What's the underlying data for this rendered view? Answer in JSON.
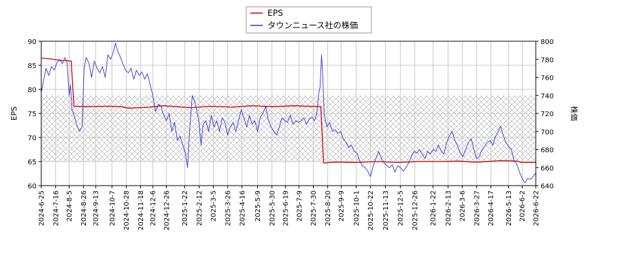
{
  "chart_data": {
    "type": "line",
    "xlabel": "",
    "ylabel_left": "EPS",
    "ylabel_right": "株価",
    "ylim_left": [
      60,
      90
    ],
    "ylim_right": [
      640,
      800
    ],
    "yticks_left": [
      60,
      65,
      70,
      75,
      80,
      85,
      90
    ],
    "yticks_right": [
      640,
      660,
      680,
      700,
      720,
      740,
      760,
      780,
      800
    ],
    "x_range": [
      "2024-06-25",
      "2026-06-22"
    ],
    "x_ticks": [
      "2024-6-25",
      "2024-7-16",
      "2024-8-5",
      "2024-8-26",
      "2024-9-13",
      "2024-10-7",
      "2024-10-28",
      "2024-11-18",
      "2024-12-6",
      "2024-12-26",
      "2025-1-22",
      "2025-2-12",
      "2025-3-5",
      "2025-3-26",
      "2025-4-16",
      "2025-5-9",
      "2025-5-30",
      "2025-6-19",
      "2025-7-9",
      "2025-7-30",
      "2025-8-20",
      "2025-9-9",
      "2025-10-1",
      "2025-10-22",
      "2025-11-13",
      "2025-12-5",
      "2025-12-26",
      "2026-1-22",
      "2026-2-13",
      "2026-3-6",
      "2026-3-27",
      "2026-4-17",
      "2026-5-13",
      "2026-6-2",
      "2026-6-22"
    ],
    "grid": true,
    "legend_position": "top-center",
    "hatched_band_right_axis": [
      666,
      740
    ],
    "series": [
      {
        "name": "EPS",
        "axis": "left",
        "color": "#cc0000",
        "points": [
          [
            "2024-06-25",
            86.5
          ],
          [
            "2024-07-10",
            86.3
          ],
          [
            "2024-07-25",
            86.0
          ],
          [
            "2024-08-08",
            85.9
          ],
          [
            "2024-08-12",
            76.5
          ],
          [
            "2024-09-01",
            76.4
          ],
          [
            "2024-10-01",
            76.5
          ],
          [
            "2024-10-20",
            76.4
          ],
          [
            "2024-11-01",
            76.1
          ],
          [
            "2024-12-01",
            76.3
          ],
          [
            "2024-12-20",
            76.6
          ],
          [
            "2025-01-10",
            76.4
          ],
          [
            "2025-02-01",
            76.2
          ],
          [
            "2025-03-01",
            76.5
          ],
          [
            "2025-04-01",
            76.3
          ],
          [
            "2025-05-01",
            76.6
          ],
          [
            "2025-06-01",
            76.4
          ],
          [
            "2025-07-01",
            76.6
          ],
          [
            "2025-08-10",
            76.4
          ],
          [
            "2025-08-14",
            64.7
          ],
          [
            "2025-09-01",
            64.9
          ],
          [
            "2025-10-01",
            64.8
          ],
          [
            "2025-11-01",
            65.0
          ],
          [
            "2025-12-01",
            64.8
          ],
          [
            "2026-01-01",
            65.0
          ],
          [
            "2026-02-01",
            65.0
          ],
          [
            "2026-03-01",
            65.1
          ],
          [
            "2026-03-20",
            64.9
          ],
          [
            "2026-04-01",
            64.9
          ],
          [
            "2026-05-01",
            65.2
          ],
          [
            "2026-05-25",
            65.1
          ],
          [
            "2026-06-01",
            64.8
          ],
          [
            "2026-06-22",
            64.8
          ]
        ]
      },
      {
        "name": "タウンニュース社の株価",
        "axis": "right",
        "color": "#3333cc",
        "points": [
          [
            "2024-06-25",
            743
          ],
          [
            "2024-06-28",
            755
          ],
          [
            "2024-07-02",
            770
          ],
          [
            "2024-07-06",
            762
          ],
          [
            "2024-07-10",
            772
          ],
          [
            "2024-07-14",
            768
          ],
          [
            "2024-07-18",
            776
          ],
          [
            "2024-07-22",
            780
          ],
          [
            "2024-07-26",
            775
          ],
          [
            "2024-07-30",
            782
          ],
          [
            "2024-08-02",
            776
          ],
          [
            "2024-08-05",
            740
          ],
          [
            "2024-08-07",
            752
          ],
          [
            "2024-08-09",
            725
          ],
          [
            "2024-08-12",
            718
          ],
          [
            "2024-08-16",
            708
          ],
          [
            "2024-08-20",
            700
          ],
          [
            "2024-08-24",
            705
          ],
          [
            "2024-08-27",
            770
          ],
          [
            "2024-08-30",
            782
          ],
          [
            "2024-09-03",
            776
          ],
          [
            "2024-09-07",
            760
          ],
          [
            "2024-09-11",
            778
          ],
          [
            "2024-09-15",
            770
          ],
          [
            "2024-09-19",
            765
          ],
          [
            "2024-09-23",
            772
          ],
          [
            "2024-09-27",
            760
          ],
          [
            "2024-10-01",
            785
          ],
          [
            "2024-10-05",
            780
          ],
          [
            "2024-10-09",
            788
          ],
          [
            "2024-10-12",
            798
          ],
          [
            "2024-10-15",
            790
          ],
          [
            "2024-10-19",
            783
          ],
          [
            "2024-10-23",
            775
          ],
          [
            "2024-10-27",
            768
          ],
          [
            "2024-10-31",
            765
          ],
          [
            "2024-11-04",
            770
          ],
          [
            "2024-11-08",
            758
          ],
          [
            "2024-11-12",
            768
          ],
          [
            "2024-11-16",
            762
          ],
          [
            "2024-11-20",
            766
          ],
          [
            "2024-11-24",
            758
          ],
          [
            "2024-11-28",
            764
          ],
          [
            "2024-12-02",
            752
          ],
          [
            "2024-12-06",
            740
          ],
          [
            "2024-12-10",
            722
          ],
          [
            "2024-12-14",
            730
          ],
          [
            "2024-12-18",
            728
          ],
          [
            "2024-12-22",
            718
          ],
          [
            "2024-12-26",
            712
          ],
          [
            "2024-12-30",
            720
          ],
          [
            "2025-01-03",
            700
          ],
          [
            "2025-01-07",
            710
          ],
          [
            "2025-01-11",
            690
          ],
          [
            "2025-01-15",
            695
          ],
          [
            "2025-01-19",
            685
          ],
          [
            "2025-01-23",
            676
          ],
          [
            "2025-01-26",
            660
          ],
          [
            "2025-01-29",
            700
          ],
          [
            "2025-02-02",
            740
          ],
          [
            "2025-02-05",
            735
          ],
          [
            "2025-02-08",
            725
          ],
          [
            "2025-02-12",
            710
          ],
          [
            "2025-02-15",
            685
          ],
          [
            "2025-02-18",
            708
          ],
          [
            "2025-02-22",
            712
          ],
          [
            "2025-02-26",
            700
          ],
          [
            "2025-03-02",
            718
          ],
          [
            "2025-03-06",
            705
          ],
          [
            "2025-03-10",
            712
          ],
          [
            "2025-03-14",
            700
          ],
          [
            "2025-03-18",
            715
          ],
          [
            "2025-03-22",
            710
          ],
          [
            "2025-03-26",
            696
          ],
          [
            "2025-03-30",
            705
          ],
          [
            "2025-04-03",
            710
          ],
          [
            "2025-04-07",
            700
          ],
          [
            "2025-04-11",
            712
          ],
          [
            "2025-04-15",
            724
          ],
          [
            "2025-04-19",
            715
          ],
          [
            "2025-04-23",
            705
          ],
          [
            "2025-04-27",
            718
          ],
          [
            "2025-05-01",
            708
          ],
          [
            "2025-05-05",
            712
          ],
          [
            "2025-05-09",
            700
          ],
          [
            "2025-05-13",
            716
          ],
          [
            "2025-05-17",
            720
          ],
          [
            "2025-05-21",
            728
          ],
          [
            "2025-05-25",
            712
          ],
          [
            "2025-05-29",
            705
          ],
          [
            "2025-06-02",
            700
          ],
          [
            "2025-06-06",
            696
          ],
          [
            "2025-06-10",
            705
          ],
          [
            "2025-06-14",
            715
          ],
          [
            "2025-06-18",
            712
          ],
          [
            "2025-06-22",
            710
          ],
          [
            "2025-06-26",
            718
          ],
          [
            "2025-06-30",
            708
          ],
          [
            "2025-07-04",
            712
          ],
          [
            "2025-07-08",
            710
          ],
          [
            "2025-07-12",
            712
          ],
          [
            "2025-07-16",
            715
          ],
          [
            "2025-07-20",
            708
          ],
          [
            "2025-07-24",
            714
          ],
          [
            "2025-07-28",
            716
          ],
          [
            "2025-08-01",
            712
          ],
          [
            "2025-08-04",
            720
          ],
          [
            "2025-08-07",
            742
          ],
          [
            "2025-08-09",
            750
          ],
          [
            "2025-08-11",
            785
          ],
          [
            "2025-08-13",
            760
          ],
          [
            "2025-08-15",
            718
          ],
          [
            "2025-08-19",
            705
          ],
          [
            "2025-08-23",
            710
          ],
          [
            "2025-08-27",
            700
          ],
          [
            "2025-08-31",
            702
          ],
          [
            "2025-09-04",
            698
          ],
          [
            "2025-09-08",
            700
          ],
          [
            "2025-09-12",
            692
          ],
          [
            "2025-09-16",
            688
          ],
          [
            "2025-09-20",
            682
          ],
          [
            "2025-09-24",
            685
          ],
          [
            "2025-09-28",
            678
          ],
          [
            "2025-10-02",
            676
          ],
          [
            "2025-10-06",
            668
          ],
          [
            "2025-10-10",
            662
          ],
          [
            "2025-10-14",
            660
          ],
          [
            "2025-10-18",
            656
          ],
          [
            "2025-10-22",
            650
          ],
          [
            "2025-10-26",
            662
          ],
          [
            "2025-10-30",
            670
          ],
          [
            "2025-11-03",
            678
          ],
          [
            "2025-11-07",
            670
          ],
          [
            "2025-11-11",
            665
          ],
          [
            "2025-11-15",
            662
          ],
          [
            "2025-11-19",
            660
          ],
          [
            "2025-11-23",
            663
          ],
          [
            "2025-11-27",
            655
          ],
          [
            "2025-12-01",
            662
          ],
          [
            "2025-12-05",
            660
          ],
          [
            "2025-12-09",
            656
          ],
          [
            "2025-12-13",
            660
          ],
          [
            "2025-12-17",
            665
          ],
          [
            "2025-12-21",
            672
          ],
          [
            "2025-12-25",
            678
          ],
          [
            "2025-12-29",
            676
          ],
          [
            "2026-01-02",
            680
          ],
          [
            "2026-01-06",
            675
          ],
          [
            "2026-01-10",
            670
          ],
          [
            "2026-01-14",
            678
          ],
          [
            "2026-01-18",
            675
          ],
          [
            "2026-01-22",
            680
          ],
          [
            "2026-01-26",
            678
          ],
          [
            "2026-01-30",
            685
          ],
          [
            "2026-02-03",
            678
          ],
          [
            "2026-02-07",
            675
          ],
          [
            "2026-02-11",
            688
          ],
          [
            "2026-02-15",
            695
          ],
          [
            "2026-02-19",
            700
          ],
          [
            "2026-02-23",
            690
          ],
          [
            "2026-02-27",
            684
          ],
          [
            "2026-03-03",
            676
          ],
          [
            "2026-03-07",
            672
          ],
          [
            "2026-03-11",
            680
          ],
          [
            "2026-03-15",
            688
          ],
          [
            "2026-03-19",
            692
          ],
          [
            "2026-03-23",
            680
          ],
          [
            "2026-03-27",
            670
          ],
          [
            "2026-03-31",
            672
          ],
          [
            "2026-04-04",
            680
          ],
          [
            "2026-04-08",
            684
          ],
          [
            "2026-04-12",
            688
          ],
          [
            "2026-04-16",
            690
          ],
          [
            "2026-04-20",
            685
          ],
          [
            "2026-04-24",
            695
          ],
          [
            "2026-04-28",
            700
          ],
          [
            "2026-05-01",
            706
          ],
          [
            "2026-05-05",
            696
          ],
          [
            "2026-05-09",
            688
          ],
          [
            "2026-05-13",
            683
          ],
          [
            "2026-05-17",
            680
          ],
          [
            "2026-05-21",
            668
          ],
          [
            "2026-05-25",
            664
          ],
          [
            "2026-05-29",
            655
          ],
          [
            "2026-06-02",
            648
          ],
          [
            "2026-06-06",
            643
          ],
          [
            "2026-06-10",
            648
          ],
          [
            "2026-06-14",
            647
          ],
          [
            "2026-06-18",
            650
          ],
          [
            "2026-06-22",
            654
          ]
        ]
      }
    ]
  }
}
